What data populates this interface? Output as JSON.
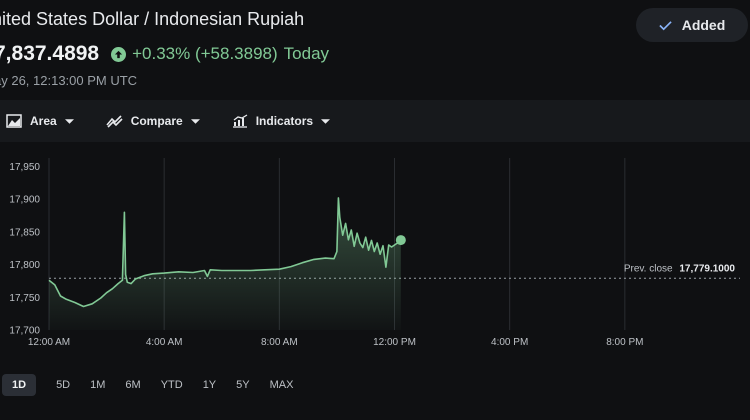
{
  "header": {
    "title": "nited States Dollar / Indonesian Rupiah",
    "price": "7,837.4898",
    "change": "+0.33% (+58.3898)",
    "change_period": "Today",
    "timestamp": "ay 26, 12:13:00 PM UTC",
    "added_label": "Added",
    "colors": {
      "positive": "#81c995"
    }
  },
  "toolbar": {
    "items": [
      {
        "label": "Area",
        "icon": "area-chart-icon"
      },
      {
        "label": "Compare",
        "icon": "compare-icon"
      },
      {
        "label": "Indicators",
        "icon": "indicators-icon"
      }
    ]
  },
  "range_selector": {
    "options": [
      "1D",
      "5D",
      "1M",
      "6M",
      "YTD",
      "1Y",
      "5Y",
      "MAX"
    ],
    "active": "1D"
  },
  "chart_data": {
    "type": "area",
    "y_ticks": [
      "17,950",
      "17,900",
      "17,850",
      "17,800",
      "17,750",
      "17,700"
    ],
    "x_ticks": [
      "12:00 AM",
      "4:00 AM",
      "8:00 AM",
      "12:00 PM",
      "4:00 PM",
      "8:00 PM"
    ],
    "ylim": [
      17700,
      17960
    ],
    "x_range_hours": [
      0,
      24
    ],
    "previous_close": {
      "label": "Prev. close",
      "value": "17,779.1000",
      "y": 17779.1
    },
    "color": "#81c995",
    "series": [
      {
        "x": [
          0,
          0.2,
          0.4,
          0.6,
          0.9,
          1.2,
          1.5,
          1.8,
          2.0,
          2.2,
          2.4,
          2.55,
          2.62,
          2.66,
          2.72,
          2.85,
          3.0,
          3.3,
          3.6,
          4.0,
          4.5,
          5.0,
          5.4,
          5.5,
          5.6,
          6.0,
          6.5,
          7.0,
          7.5,
          8.0,
          8.4,
          8.8,
          9.2,
          9.6,
          9.9,
          10.0,
          10.05,
          10.1,
          10.2,
          10.3,
          10.4,
          10.5,
          10.6,
          10.7,
          10.8,
          10.9,
          11.0,
          11.1,
          11.2,
          11.3,
          11.4,
          11.5,
          11.6,
          11.7,
          11.8,
          11.9,
          12.0,
          12.1,
          12.22
        ],
        "y": [
          17776,
          17769,
          17752,
          17747,
          17742,
          17736,
          17740,
          17749,
          17757,
          17763,
          17771,
          17776,
          17880,
          17785,
          17773,
          17771,
          17778,
          17783,
          17786,
          17787,
          17789,
          17788,
          17791,
          17782,
          17792,
          17791,
          17791,
          17791,
          17792,
          17793,
          17797,
          17803,
          17808,
          17810,
          17809,
          17820,
          17902,
          17872,
          17845,
          17863,
          17838,
          17853,
          17828,
          17848,
          17833,
          17826,
          17842,
          17822,
          17837,
          17820,
          17833,
          17816,
          17829,
          17796,
          17830,
          17827,
          17830,
          17833,
          17837.5
        ]
      }
    ]
  }
}
